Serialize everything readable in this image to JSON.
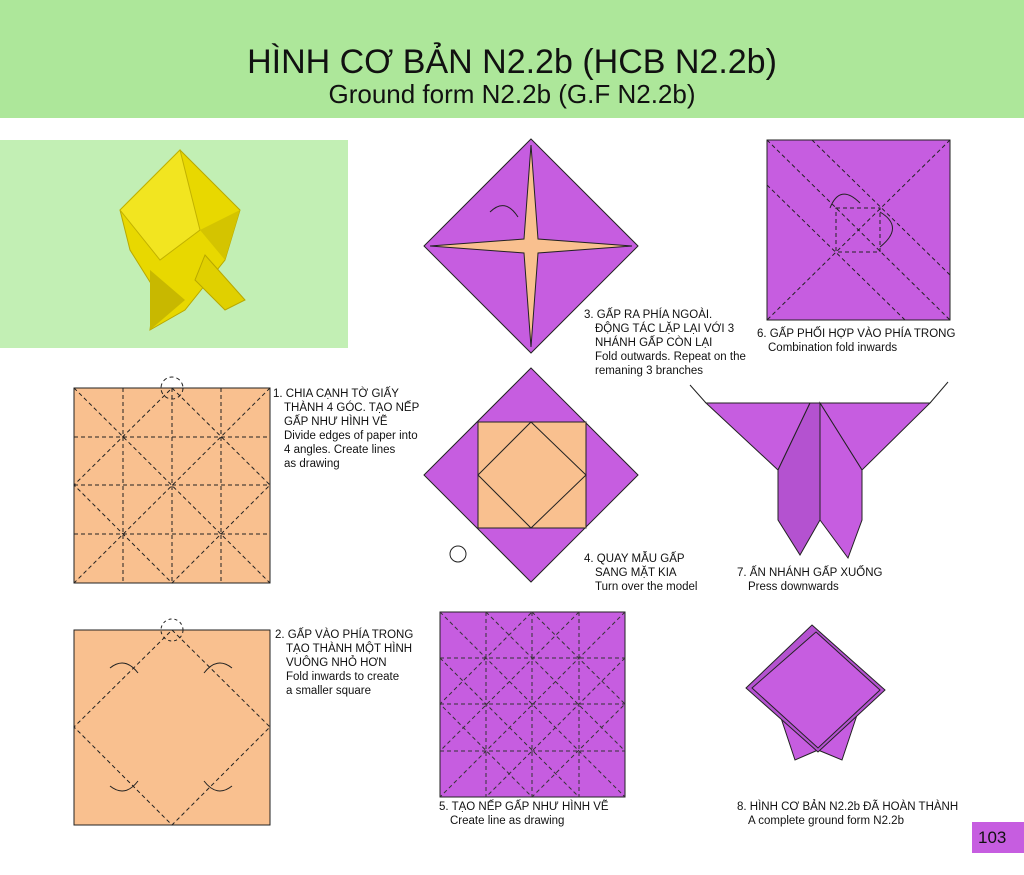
{
  "header": {
    "title": "HÌNH CƠ BẢN N2.2b (HCB N2.2b)",
    "subtitle": "Ground form N2.2b (G.F N2.2b)"
  },
  "colors": {
    "header_bg": "#ade79a",
    "paper_peach": "#f9c08f",
    "paper_purple": "#c65de0",
    "photo_bg": "#c2efb4",
    "model_yellow": "#e8d800"
  },
  "steps": [
    {
      "vi": [
        "1. CHIA CẠNH TỜ GIẤY",
        "THÀNH 4 GÓC. TẠO NẾP",
        "GẤP NHƯ HÌNH VẼ"
      ],
      "en": [
        "Divide edges of paper into",
        "4 angles. Create lines",
        "as drawing"
      ]
    },
    {
      "vi": [
        "2. GẤP VÀO PHÍA TRONG",
        "TẠO THÀNH MỘT HÌNH",
        "VUÔNG NHỎ HƠN"
      ],
      "en": [
        "Fold inwards to create",
        "a smaller square"
      ]
    },
    {
      "vi": [
        "3. GẤP RA PHÍA NGOÀI.",
        "ĐỘNG TÁC LẶP LẠI VỚI 3",
        "NHÁNH GẤP CÒN LẠI"
      ],
      "en": [
        "Fold outwards. Repeat on the",
        "remaning 3 branches"
      ]
    },
    {
      "vi": [
        "4. QUAY MẪU GẤP",
        "SANG MẶT KIA"
      ],
      "en": [
        "Turn over the model"
      ]
    },
    {
      "vi": [
        "5. TẠO NẾP GẤP NHƯ HÌNH VẼ"
      ],
      "en": [
        "Create line as drawing"
      ]
    },
    {
      "vi": [
        "6. GẤP PHỐI HỢP VÀO PHÍA TRONG"
      ],
      "en": [
        "Combination fold inwards"
      ]
    },
    {
      "vi": [
        "7. ẤN NHÁNH GẤP XUỐNG"
      ],
      "en": [
        "Press downwards"
      ]
    },
    {
      "vi": [
        "8. HÌNH CƠ BẢN N2.2b ĐÃ HOÀN THÀNH"
      ],
      "en": [
        "A complete ground form N2.2b"
      ]
    }
  ],
  "page_number": "103"
}
